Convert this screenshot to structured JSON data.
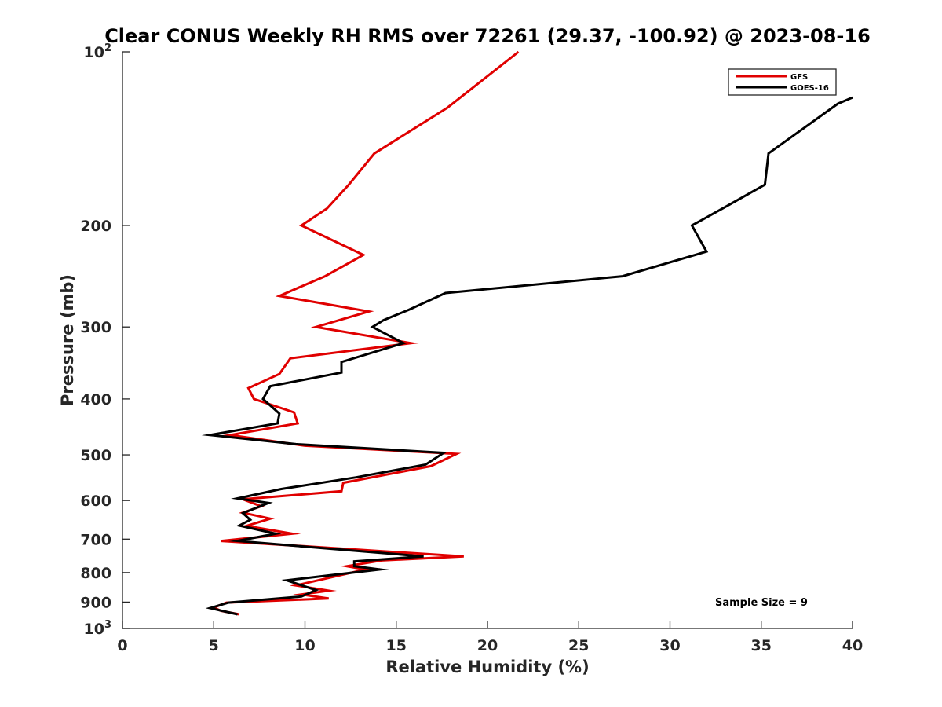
{
  "chart_data": {
    "type": "line",
    "title": "Clear CONUS Weekly RH RMS over 72261 (29.37, -100.92) @ 2023-08-16",
    "xlabel": "Relative Humidity (%)",
    "ylabel": "Pressure (mb)",
    "xlim": [
      0,
      40
    ],
    "ylim": [
      100,
      1000
    ],
    "y_scale": "log",
    "y_reversed": true,
    "xticks": [
      0,
      5,
      10,
      15,
      20,
      25,
      30,
      35,
      40
    ],
    "xtick_labels": [
      "0",
      "5",
      "10",
      "15",
      "20",
      "25",
      "30",
      "35",
      "40"
    ],
    "yticks": [
      {
        "value": 100,
        "base": "10",
        "exp": "2"
      },
      {
        "value": 200,
        "label": "200"
      },
      {
        "value": 300,
        "label": "300"
      },
      {
        "value": 400,
        "label": "400"
      },
      {
        "value": 500,
        "label": "500"
      },
      {
        "value": 600,
        "label": "600"
      },
      {
        "value": 700,
        "label": "700"
      },
      {
        "value": 800,
        "label": "800"
      },
      {
        "value": 900,
        "label": "900"
      },
      {
        "value": 1000,
        "base": "10",
        "exp": "3"
      }
    ],
    "grid": false,
    "legend_position": "top-right",
    "annotation": "Sample Size = 9",
    "series": [
      {
        "name": "GFS",
        "color": "#e00000",
        "points": [
          [
            21.7,
            100
          ],
          [
            17.8,
            125
          ],
          [
            13.8,
            150
          ],
          [
            12.4,
            170
          ],
          [
            11.2,
            187
          ],
          [
            9.8,
            200
          ],
          [
            13.2,
            225
          ],
          [
            11.1,
            245
          ],
          [
            8.6,
            265
          ],
          [
            13.5,
            282
          ],
          [
            10.6,
            300
          ],
          [
            15.8,
            320
          ],
          [
            9.2,
            340
          ],
          [
            8.6,
            362
          ],
          [
            6.9,
            383
          ],
          [
            7.2,
            400
          ],
          [
            9.4,
            422
          ],
          [
            9.6,
            441
          ],
          [
            5.9,
            462
          ],
          [
            10.0,
            482
          ],
          [
            18.3,
            498
          ],
          [
            16.9,
            523
          ],
          [
            12.1,
            559
          ],
          [
            12.0,
            578
          ],
          [
            6.6,
            597
          ],
          [
            7.6,
            614
          ],
          [
            6.6,
            630
          ],
          [
            8.1,
            645
          ],
          [
            6.8,
            664
          ],
          [
            9.3,
            685
          ],
          [
            5.4,
            705
          ],
          [
            18.7,
            750
          ],
          [
            14.2,
            762
          ],
          [
            12.3,
            780
          ],
          [
            13.3,
            790
          ],
          [
            9.5,
            842
          ],
          [
            11.3,
            860
          ],
          [
            9.8,
            873
          ],
          [
            11.3,
            887
          ],
          [
            5.7,
            902
          ],
          [
            5.0,
            920
          ],
          [
            5.4,
            932
          ],
          [
            6.4,
            945
          ]
        ]
      },
      {
        "name": "GOES-16",
        "color": "#000000",
        "points": [
          [
            40.0,
            120
          ],
          [
            39.2,
            123
          ],
          [
            35.4,
            150
          ],
          [
            35.2,
            170
          ],
          [
            33.0,
            186
          ],
          [
            31.2,
            200
          ],
          [
            32.0,
            222
          ],
          [
            27.4,
            245
          ],
          [
            17.7,
            262
          ],
          [
            15.7,
            280
          ],
          [
            14.3,
            292
          ],
          [
            13.7,
            300
          ],
          [
            15.4,
            320
          ],
          [
            12.0,
            345
          ],
          [
            12.0,
            360
          ],
          [
            8.1,
            380
          ],
          [
            7.7,
            400
          ],
          [
            8.6,
            424
          ],
          [
            8.5,
            441
          ],
          [
            4.8,
            462
          ],
          [
            9.5,
            479
          ],
          [
            17.6,
            496
          ],
          [
            16.6,
            520
          ],
          [
            12.8,
            547
          ],
          [
            8.7,
            573
          ],
          [
            6.3,
            595
          ],
          [
            8.0,
            606
          ],
          [
            6.6,
            631
          ],
          [
            7.0,
            648
          ],
          [
            6.4,
            663
          ],
          [
            8.4,
            685
          ],
          [
            6.3,
            705
          ],
          [
            10.2,
            722
          ],
          [
            16.5,
            750
          ],
          [
            12.7,
            765
          ],
          [
            12.7,
            780
          ],
          [
            14.1,
            790
          ],
          [
            9.0,
            825
          ],
          [
            10.6,
            858
          ],
          [
            9.8,
            880
          ],
          [
            5.8,
            902
          ],
          [
            4.8,
            922
          ],
          [
            6.3,
            945
          ]
        ]
      }
    ]
  }
}
